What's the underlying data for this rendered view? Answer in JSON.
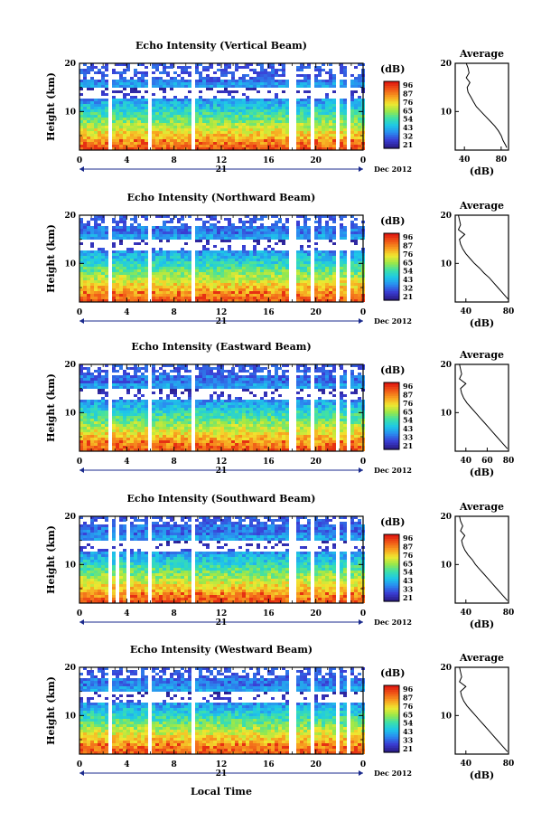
{
  "figure": {
    "xlabel": "Local Time",
    "date_label": "Dec 2012",
    "day_label": "21",
    "colorbar_title": "(dB)",
    "avg_title": "Average",
    "avg_xlabel": "(dB)"
  },
  "colors": {
    "scale": [
      "#2b1e8c",
      "#3a3fd6",
      "#2a8cf0",
      "#1ec8e8",
      "#3ee0a8",
      "#9ae84a",
      "#f0e830",
      "#f8a020",
      "#f05a18",
      "#e01a10"
    ]
  },
  "chart_data": [
    {
      "type": "heatmap",
      "title": "Echo Intensity (Vertical Beam)",
      "ylabel": "Height (km)",
      "x_ticks": [
        "0",
        "4",
        "8",
        "12",
        "16",
        "20",
        "0"
      ],
      "y_ticks": [
        "20",
        "10"
      ],
      "xlim": [
        0,
        24
      ],
      "ylim": [
        2,
        20
      ],
      "colorbar_ticks": [
        "96",
        "87",
        "76",
        "65",
        "54",
        "43",
        "32",
        "21"
      ],
      "gaps_hours": [
        [
          2.3,
          2.6
        ],
        [
          5.8,
          6.1
        ],
        [
          9.5,
          9.8
        ],
        [
          17.8,
          18.2
        ],
        [
          19.5,
          19.9
        ],
        [
          21.8,
          22.0
        ],
        [
          22.6,
          22.8
        ]
      ],
      "top_height_km": 16.5,
      "average": {
        "x_ticks": [
          "40",
          "80"
        ],
        "xlim": [
          30,
          88
        ],
        "y_ticks": [
          "20",
          "10"
        ],
        "height_km": [
          2.5,
          3,
          4,
          5,
          6,
          7,
          8,
          9,
          10,
          11,
          12,
          13,
          14,
          15,
          16,
          17,
          18,
          19,
          20
        ],
        "db": [
          86,
          85,
          82,
          80,
          77,
          73,
          68,
          63,
          58,
          53,
          50,
          47,
          44,
          43,
          46,
          42,
          45,
          44,
          42
        ]
      }
    },
    {
      "type": "heatmap",
      "title": "Echo Intensity (Northward Beam)",
      "ylabel": "Height (km)",
      "x_ticks": [
        "0",
        "4",
        "8",
        "12",
        "16",
        "20",
        "0"
      ],
      "y_ticks": [
        "20",
        "10"
      ],
      "xlim": [
        0,
        24
      ],
      "ylim": [
        2,
        20
      ],
      "colorbar_ticks": [
        "96",
        "87",
        "76",
        "65",
        "54",
        "43",
        "32",
        "21"
      ],
      "gaps_hours": [
        [
          2.3,
          2.6
        ],
        [
          5.8,
          6.1
        ],
        [
          9.5,
          9.8
        ],
        [
          17.8,
          18.2
        ],
        [
          19.5,
          19.9
        ],
        [
          21.8,
          22.0
        ],
        [
          22.6,
          22.8
        ]
      ],
      "top_height_km": 18.0,
      "average": {
        "x_ticks": [
          "40",
          "80"
        ],
        "xlim": [
          30,
          80
        ],
        "y_ticks": [
          "20",
          "10"
        ],
        "height_km": [
          2.5,
          3,
          4,
          5,
          6,
          7,
          8,
          9,
          10,
          11,
          12,
          13,
          14,
          15,
          16,
          17,
          18,
          19,
          20
        ],
        "db": [
          80,
          78,
          74,
          70,
          66,
          62,
          57,
          53,
          48,
          44,
          40,
          37,
          35,
          34,
          39,
          33,
          35,
          34,
          33
        ]
      }
    },
    {
      "type": "heatmap",
      "title": "Echo Intensity (Eastward Beam)",
      "ylabel": "Height (km)",
      "x_ticks": [
        "0",
        "4",
        "8",
        "12",
        "16",
        "20",
        "0"
      ],
      "y_ticks": [
        "20",
        "10"
      ],
      "xlim": [
        0,
        24
      ],
      "ylim": [
        2,
        20
      ],
      "colorbar_ticks": [
        "96",
        "87",
        "76",
        "65",
        "54",
        "43",
        "33",
        "21"
      ],
      "gaps_hours": [
        [
          2.3,
          2.6
        ],
        [
          5.8,
          6.1
        ],
        [
          9.5,
          9.8
        ],
        [
          17.8,
          18.2
        ],
        [
          19.5,
          19.9
        ],
        [
          21.8,
          22.0
        ],
        [
          22.6,
          22.8
        ]
      ],
      "top_height_km": 18.0,
      "average": {
        "x_ticks": [
          "40",
          "60",
          "80"
        ],
        "xlim": [
          30,
          80
        ],
        "y_ticks": [
          "20",
          "10"
        ],
        "height_km": [
          2.5,
          3,
          4,
          5,
          6,
          7,
          8,
          9,
          10,
          11,
          12,
          13,
          14,
          15,
          16,
          17,
          18,
          19,
          20
        ],
        "db": [
          79,
          77,
          73,
          69,
          65,
          61,
          57,
          53,
          49,
          45,
          41,
          38,
          36,
          35,
          40,
          34,
          36,
          35,
          34
        ]
      }
    },
    {
      "type": "heatmap",
      "title": "Echo Intensity (Southward Beam)",
      "ylabel": "Height (km)",
      "x_ticks": [
        "0",
        "4",
        "8",
        "12",
        "16",
        "20",
        "0"
      ],
      "y_ticks": [
        "20",
        "10"
      ],
      "xlim": [
        0,
        24
      ],
      "ylim": [
        2,
        20
      ],
      "colorbar_ticks": [
        "96",
        "87",
        "76",
        "65",
        "54",
        "43",
        "33",
        "21"
      ],
      "gaps_hours": [
        [
          2.3,
          2.6
        ],
        [
          3.2,
          3.5
        ],
        [
          4.1,
          4.4
        ],
        [
          5.8,
          6.1
        ],
        [
          9.5,
          9.8
        ],
        [
          17.8,
          18.2
        ],
        [
          19.5,
          19.9
        ],
        [
          21.8,
          22.0
        ],
        [
          22.6,
          22.8
        ]
      ],
      "top_height_km": 18.5,
      "average": {
        "x_ticks": [
          "40",
          "80"
        ],
        "xlim": [
          30,
          80
        ],
        "y_ticks": [
          "20",
          "10"
        ],
        "height_km": [
          2.5,
          3,
          4,
          5,
          6,
          7,
          8,
          9,
          10,
          11,
          12,
          13,
          14,
          15,
          16,
          17,
          18,
          19,
          20
        ],
        "db": [
          79,
          77,
          73,
          69,
          65,
          61,
          57,
          53,
          49,
          46,
          42,
          39,
          37,
          36,
          39,
          35,
          37,
          35,
          34
        ]
      }
    },
    {
      "type": "heatmap",
      "title": "Echo Intensity (Westward Beam)",
      "ylabel": "Height (km)",
      "x_ticks": [
        "0",
        "4",
        "8",
        "12",
        "16",
        "20",
        "0"
      ],
      "y_ticks": [
        "20",
        "10"
      ],
      "xlim": [
        0,
        24
      ],
      "ylim": [
        2,
        20
      ],
      "colorbar_ticks": [
        "96",
        "87",
        "76",
        "65",
        "54",
        "43",
        "33",
        "21"
      ],
      "gaps_hours": [
        [
          2.3,
          2.6
        ],
        [
          5.8,
          6.1
        ],
        [
          9.5,
          9.8
        ],
        [
          17.8,
          18.2
        ],
        [
          19.5,
          19.9
        ],
        [
          21.8,
          22.0
        ],
        [
          22.6,
          22.8
        ]
      ],
      "top_height_km": 18.0,
      "average": {
        "x_ticks": [
          "40",
          "80"
        ],
        "xlim": [
          30,
          80
        ],
        "y_ticks": [
          "20",
          "10"
        ],
        "height_km": [
          2.5,
          3,
          4,
          5,
          6,
          7,
          8,
          9,
          10,
          11,
          12,
          13,
          14,
          15,
          16,
          17,
          18,
          19,
          20
        ],
        "db": [
          79,
          77,
          73,
          69,
          65,
          61,
          57,
          53,
          49,
          45,
          41,
          38,
          36,
          35,
          40,
          34,
          36,
          35,
          34
        ]
      }
    }
  ]
}
